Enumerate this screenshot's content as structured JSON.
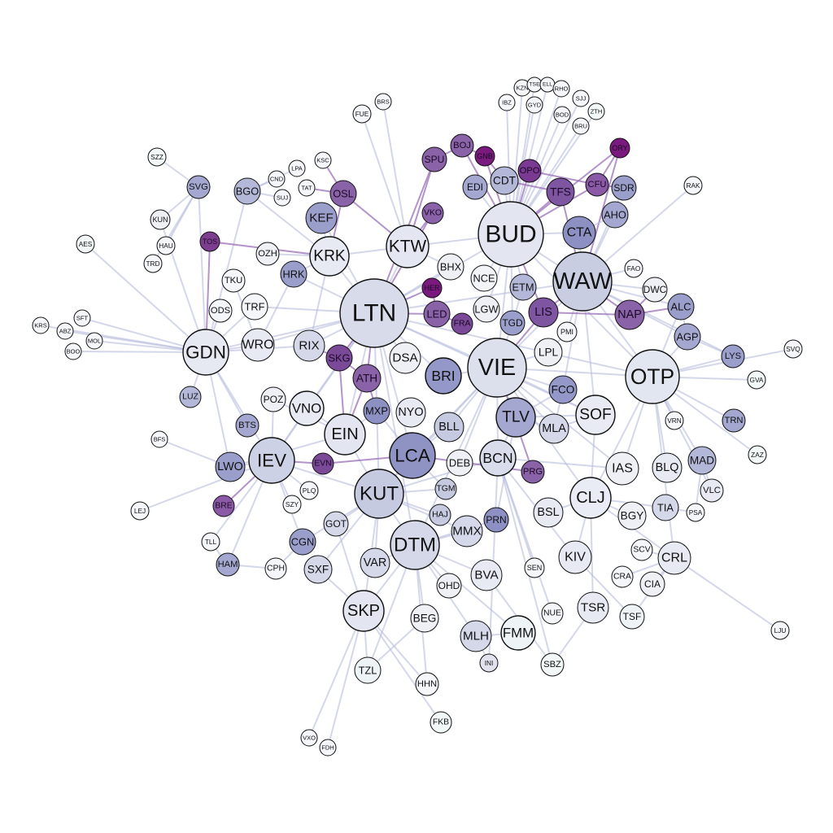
{
  "graph": {
    "nodes": [
      {
        "id": "LTN",
        "shade": "#d8dcea"
      },
      {
        "id": "BUD",
        "shade": "#e3e6f0"
      },
      {
        "id": "WAW",
        "shade": "#c9cde2"
      },
      {
        "id": "VIE",
        "shade": "#dbe0ec"
      },
      {
        "id": "OTP",
        "shade": "#e2e6f0"
      },
      {
        "id": "KUT",
        "shade": "#c6cae0"
      },
      {
        "id": "DTM",
        "shade": "#d4d8e8"
      },
      {
        "id": "GDN",
        "shade": "#e6e9f2"
      },
      {
        "id": "IEV",
        "shade": "#cdd1e5"
      },
      {
        "id": "LCA",
        "shade": "#8e93c4"
      },
      {
        "id": "KTW",
        "shade": "#e4e7f1"
      },
      {
        "id": "KRK",
        "shade": "#e7eaf3"
      },
      {
        "id": "CLJ",
        "shade": "#e9ecf4"
      },
      {
        "id": "SOF",
        "shade": "#e8ebf3"
      },
      {
        "id": "EIN",
        "shade": "#e3e6f0"
      },
      {
        "id": "TLV",
        "shade": "#a4a8d0"
      },
      {
        "id": "BRI",
        "shade": "#9498c8"
      },
      {
        "id": "BCN",
        "shade": "#d9ddeb"
      },
      {
        "id": "SKP",
        "shade": "#e3e6f0"
      },
      {
        "id": "CTA",
        "shade": "#8c90c2"
      },
      {
        "id": "KEF",
        "shade": "#9a9ecb"
      },
      {
        "id": "CDT",
        "shade": "#b4b8d8"
      },
      {
        "id": "TFS",
        "shade": "#7e55a0"
      },
      {
        "id": "LIS",
        "shade": "#7e55a0"
      },
      {
        "id": "NAP",
        "shade": "#8a62a8"
      },
      {
        "id": "ATH",
        "shade": "#8a62a8"
      },
      {
        "id": "SKG",
        "shade": "#7a4a98"
      },
      {
        "id": "SPU",
        "shade": "#8a62a8"
      },
      {
        "id": "BOJ",
        "shade": "#8a62a8"
      },
      {
        "id": "OPO",
        "shade": "#7a3a92"
      },
      {
        "id": "CFU",
        "shade": "#8a5aa6"
      },
      {
        "id": "GNB",
        "shade": "#7a1a7e"
      },
      {
        "id": "ORY",
        "shade": "#7a1a7e"
      },
      {
        "id": "HER",
        "shade": "#7a1a7e"
      },
      {
        "id": "VKO",
        "shade": "#8a62a8"
      },
      {
        "id": "TOS",
        "shade": "#7e3e90"
      },
      {
        "id": "OSL",
        "shade": "#8a62a8"
      },
      {
        "id": "LED",
        "shade": "#8a62a8"
      },
      {
        "id": "FRA",
        "shade": "#7a4a98"
      },
      {
        "id": "EVN",
        "shade": "#7a4a98"
      },
      {
        "id": "BRE",
        "shade": "#8a5aa6"
      },
      {
        "id": "PRG",
        "shade": "#8a62a8"
      },
      {
        "id": "MXP",
        "shade": "#8c90c2"
      },
      {
        "id": "HRK",
        "shade": "#9a9ecb"
      },
      {
        "id": "ALC",
        "shade": "#9a9ecb"
      },
      {
        "id": "AGP",
        "shade": "#a4a8d0"
      },
      {
        "id": "LYS",
        "shade": "#9a9ecb"
      },
      {
        "id": "FCO",
        "shade": "#9498c8"
      },
      {
        "id": "TGD",
        "shade": "#9a9ecb"
      },
      {
        "id": "ETM",
        "shade": "#b4b8d8"
      },
      {
        "id": "EDI",
        "shade": "#a4a8d0"
      },
      {
        "id": "SDR",
        "shade": "#9a9ecb"
      },
      {
        "id": "AHO",
        "shade": "#a4a8d0"
      },
      {
        "id": "SVG",
        "shade": "#a4a8d0"
      },
      {
        "id": "BGO",
        "shade": "#b4b8d8"
      },
      {
        "id": "LWO",
        "shade": "#9a9ecb"
      },
      {
        "id": "CGN",
        "shade": "#9a9ecb"
      },
      {
        "id": "HAM",
        "shade": "#a4a8d0"
      },
      {
        "id": "BTS",
        "shade": "#a4a8d0"
      },
      {
        "id": "LUZ",
        "shade": "#b4b8d8"
      },
      {
        "id": "TRN",
        "shade": "#a4a8d0"
      },
      {
        "id": "MAD",
        "shade": "#b4b8d8"
      },
      {
        "id": "BLL",
        "shade": "#c6cae0"
      },
      {
        "id": "MLA",
        "shade": "#d4d8e8"
      },
      {
        "id": "RIX",
        "shade": "#d4d8e8"
      },
      {
        "id": "VNO",
        "shade": "#e7eaf3"
      },
      {
        "id": "WRO",
        "shade": "#e7eaf3"
      },
      {
        "id": "DSA",
        "shade": "#eef0f6"
      },
      {
        "id": "NYO",
        "shade": "#e7eaf3"
      },
      {
        "id": "GOT",
        "shade": "#d4d8e8"
      },
      {
        "id": "SXF",
        "shade": "#d4d8e8"
      },
      {
        "id": "VAR",
        "shade": "#d4d8e8"
      },
      {
        "id": "MMX",
        "shade": "#d4d8e8"
      },
      {
        "id": "HAJ",
        "shade": "#c6cae0"
      },
      {
        "id": "TGM",
        "shade": "#c6cae0"
      },
      {
        "id": "PRN",
        "shade": "#8c90c2"
      },
      {
        "id": "BVA",
        "shade": "#e7eaf3"
      },
      {
        "id": "MLH",
        "shade": "#d4d8e8"
      },
      {
        "id": "FMM",
        "shade": "#eef4f6"
      },
      {
        "id": "BEG",
        "shade": "#eef0f6"
      },
      {
        "id": "OHD",
        "shade": "#eef0f6"
      },
      {
        "id": "TSR",
        "shade": "#e7eaf3"
      },
      {
        "id": "KIV",
        "shade": "#e7eaf3"
      },
      {
        "id": "BSL",
        "shade": "#e7eaf3"
      },
      {
        "id": "BGY",
        "shade": "#eef0f6"
      },
      {
        "id": "IAS",
        "shade": "#eef0f6"
      },
      {
        "id": "BLQ",
        "shade": "#e7eaf3"
      },
      {
        "id": "TIA",
        "shade": "#d4d8e8"
      },
      {
        "id": "CRL",
        "shade": "#e7eaf3"
      },
      {
        "id": "CIA",
        "shade": "#eef0f6"
      },
      {
        "id": "TSF",
        "shade": "#eef4f6"
      },
      {
        "id": "VLC",
        "shade": "#e7eaf3"
      },
      {
        "id": "DEB",
        "shade": "#eef0f6"
      },
      {
        "id": "LPL",
        "shade": "#eef0f6"
      },
      {
        "id": "LGW",
        "shade": "#eef0f6"
      },
      {
        "id": "NCE",
        "shade": "#f2f4f8"
      },
      {
        "id": "BHX",
        "shade": "#eef0f6"
      },
      {
        "id": "DWC",
        "shade": "#eef0f6"
      },
      {
        "id": "OZH",
        "shade": "#eef0f6"
      },
      {
        "id": "TKU",
        "shade": "#f4f6fa"
      },
      {
        "id": "TRF",
        "shade": "#f4f6fa"
      },
      {
        "id": "ODS",
        "shade": "#f4f6fa"
      },
      {
        "id": "POZ",
        "shade": "#eef0f6"
      },
      {
        "id": "TZL",
        "shade": "#eef4f6"
      },
      {
        "id": "HHN",
        "shade": "#f4f6fa"
      },
      {
        "id": "FKB",
        "shade": "#f2f8f8"
      },
      {
        "id": "SBZ",
        "shade": "#f2f8f8"
      },
      {
        "id": "NUE",
        "shade": "#f4f6fa"
      },
      {
        "id": "INI",
        "shade": "#e0e2ee"
      },
      {
        "id": "SEN",
        "shade": "#f4f6fa"
      },
      {
        "id": "SCV",
        "shade": "#f4f6fa"
      },
      {
        "id": "CRA",
        "shade": "#f4f6fa"
      },
      {
        "id": "PMI",
        "shade": "#f4f6fa"
      },
      {
        "id": "FAO",
        "shade": "#f4f6fa"
      },
      {
        "id": "PLQ",
        "shade": "#f4f6fa"
      },
      {
        "id": "SZY",
        "shade": "#f4f6fa"
      },
      {
        "id": "CPH",
        "shade": "#f4f6fa"
      },
      {
        "id": "TLL",
        "shade": "#f4f6fa"
      },
      {
        "id": "KUN",
        "shade": "#eef0f6"
      },
      {
        "id": "SZZ",
        "shade": "#f2f8f8"
      },
      {
        "id": "AES",
        "shade": "#f2f8f8"
      },
      {
        "id": "HAU",
        "shade": "#f4f6fa"
      },
      {
        "id": "TRD",
        "shade": "#f4f6fa"
      },
      {
        "id": "CND",
        "shade": "#f4f6fa"
      },
      {
        "id": "LPA",
        "shade": "#f4f6fa"
      },
      {
        "id": "SUJ",
        "shade": "#f4f6fa"
      },
      {
        "id": "TAT",
        "shade": "#f4f6fa"
      },
      {
        "id": "KSC",
        "shade": "#f4f6fa"
      },
      {
        "id": "FUE",
        "shade": "#f4f6fa"
      },
      {
        "id": "BRS",
        "shade": "#f4f6fa"
      },
      {
        "id": "KRS",
        "shade": "#f4f6fa"
      },
      {
        "id": "ABZ",
        "shade": "#f4f6fa"
      },
      {
        "id": "SFT",
        "shade": "#f4f6fa"
      },
      {
        "id": "BOO",
        "shade": "#f4f6fa"
      },
      {
        "id": "MOL",
        "shade": "#f4f6fa"
      },
      {
        "id": "BFS",
        "shade": "#f4f6fa"
      },
      {
        "id": "LEJ",
        "shade": "#f4f6fa"
      },
      {
        "id": "VXO",
        "shade": "#f4f6fa"
      },
      {
        "id": "FDH",
        "shade": "#f4f6fa"
      },
      {
        "id": "RAK",
        "shade": "#f4f6fa"
      },
      {
        "id": "SVQ",
        "shade": "#f4f6fa"
      },
      {
        "id": "GVA",
        "shade": "#f2f8f8"
      },
      {
        "id": "VRN",
        "shade": "#f4f6fa"
      },
      {
        "id": "ZAZ",
        "shade": "#f2f8f8"
      },
      {
        "id": "PSA",
        "shade": "#f4f6fa"
      },
      {
        "id": "LJU",
        "shade": "#f4f6fa"
      },
      {
        "id": "KZN",
        "shade": "#f4f6fa"
      },
      {
        "id": "TSE",
        "shade": "#f4f6fa"
      },
      {
        "id": "ELL",
        "shade": "#f4f6fa"
      },
      {
        "id": "RHO",
        "shade": "#f4f6fa"
      },
      {
        "id": "SJJ",
        "shade": "#f4f6fa"
      },
      {
        "id": "IBZ",
        "shade": "#f4f6fa"
      },
      {
        "id": "GYD",
        "shade": "#f4f6fa"
      },
      {
        "id": "BOD",
        "shade": "#f4f6fa"
      },
      {
        "id": "ZTH",
        "shade": "#f2f8f8"
      },
      {
        "id": "BRU",
        "shade": "#f4f6fa"
      }
    ]
  }
}
